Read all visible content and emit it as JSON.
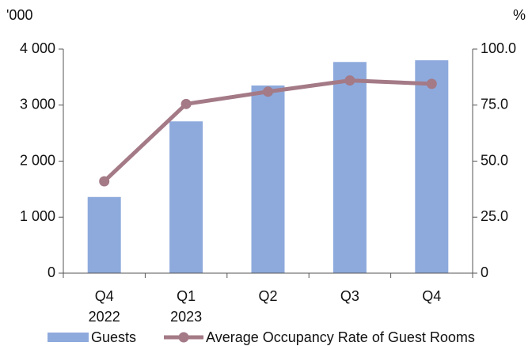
{
  "chart_data": {
    "type": "bar_line",
    "y_unit": "'000",
    "y2_unit": "%",
    "categories": [
      "Q4\n2022",
      "Q1\n2023",
      "Q2",
      "Q3",
      "Q4"
    ],
    "series": [
      {
        "name": "Guests",
        "type": "bar",
        "color": "#8eaadc",
        "values": [
          1360,
          2710,
          3350,
          3770,
          3800
        ]
      },
      {
        "name": "Average Occupancy Rate of Guest Rooms",
        "type": "line",
        "axis": "y2",
        "color": "#a47a87",
        "values": [
          41,
          75.5,
          81,
          86,
          84.5
        ]
      }
    ],
    "ylim": [
      0,
      4000
    ],
    "yticks": [
      0,
      {
        "value": 1000,
        "label": "1 000"
      },
      {
        "value": 2000,
        "label": "2 000"
      },
      {
        "value": 3000,
        "label": "3 000"
      },
      {
        "value": 4000,
        "label": "4 000"
      }
    ],
    "y2lim": [
      0,
      100
    ],
    "y2ticks": [
      0,
      {
        "value": 25,
        "label": "25.0"
      },
      {
        "value": 50,
        "label": "50.0"
      },
      {
        "value": 75,
        "label": "75.0"
      },
      {
        "value": 100,
        "label": "100.0"
      }
    ],
    "legend": "bottom"
  }
}
